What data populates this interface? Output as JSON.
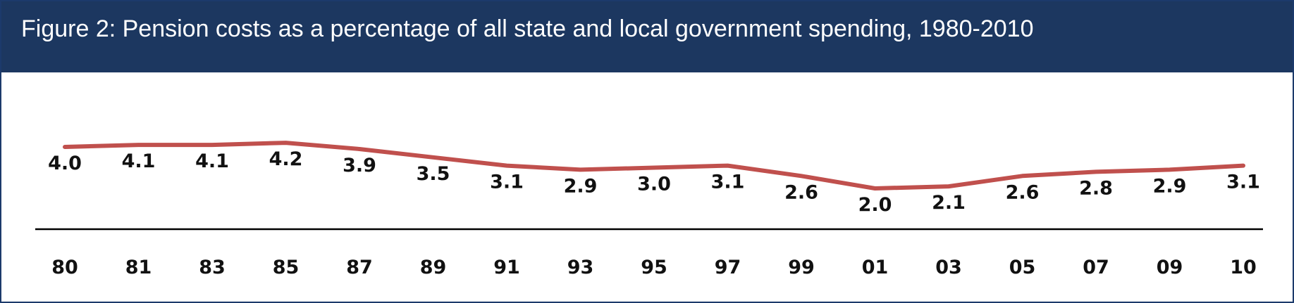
{
  "header": {
    "title": "Figure 2: Pension costs as a percentage of all state and local government spending, 1980-2010"
  },
  "colors": {
    "header_bg": "#1c3760",
    "line": "#c0504d",
    "axis": "#000000"
  },
  "chart_data": {
    "type": "line",
    "title": "Figure 2: Pension costs as a percentage of all state and local government spending, 1980-2010",
    "xlabel": "",
    "ylabel": "",
    "categories": [
      "80",
      "81",
      "83",
      "85",
      "87",
      "89",
      "91",
      "93",
      "95",
      "97",
      "99",
      "01",
      "03",
      "05",
      "07",
      "09",
      "10"
    ],
    "values": [
      4.0,
      4.1,
      4.1,
      4.2,
      3.9,
      3.5,
      3.1,
      2.9,
      3.0,
      3.1,
      2.6,
      2.0,
      2.1,
      2.6,
      2.8,
      2.9,
      3.1
    ],
    "value_labels": [
      "4.0",
      "4.1",
      "4.1",
      "4.2",
      "3.9",
      "3.5",
      "3.1",
      "2.9",
      "3.0",
      "3.1",
      "2.6",
      "2.0",
      "2.1",
      "2.6",
      "2.8",
      "2.9",
      "3.1"
    ],
    "grid": false,
    "legend": "none"
  }
}
